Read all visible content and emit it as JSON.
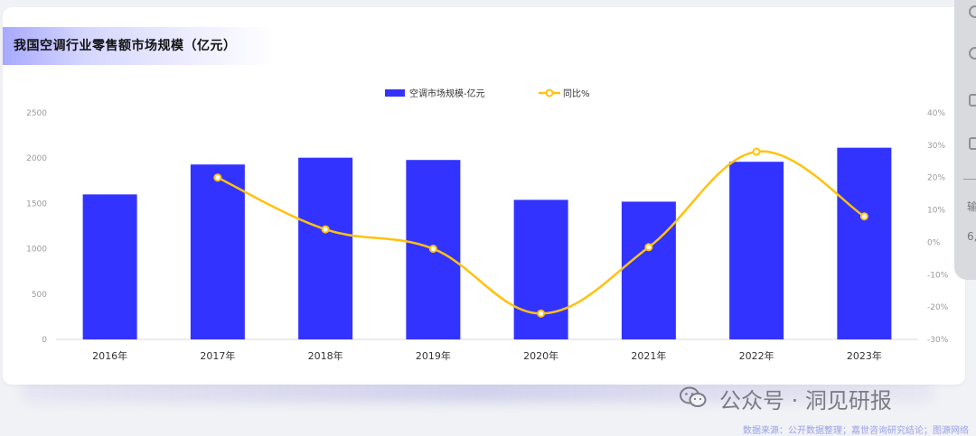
{
  "chart_title": "我国空调行业零售额市场规模（亿元）",
  "watermark": {
    "text": "公众号 · 洞见研报",
    "icon": "wechat-icon"
  },
  "source_note": "数据来源：公开数据整理；嘉世咨询研究结论；图源网络",
  "side_panel": {
    "text_1": "输",
    "text_2": "6,"
  },
  "colors": {
    "bar": "#3333ff",
    "line": "#ffc20e",
    "axis_text": "#999999"
  },
  "chart_data": {
    "type": "bar",
    "title": "我国空调行业零售额市场规模（亿元）",
    "categories": [
      "2016年",
      "2017年",
      "2018年",
      "2019年",
      "2020年",
      "2021年",
      "2022年",
      "2023年"
    ],
    "series": [
      {
        "name": "空调市场规模-亿元",
        "type": "bar",
        "axis": "left",
        "values": [
          1600,
          1930,
          2005,
          1980,
          1540,
          1520,
          1960,
          2115
        ]
      },
      {
        "name": "同比%",
        "type": "line",
        "axis": "right",
        "values": [
          null,
          20,
          4,
          -2,
          -22,
          -1.5,
          28,
          8
        ]
      }
    ],
    "y_left": {
      "min": 0,
      "max": 2500,
      "ticks": [
        "0",
        "500",
        "1000",
        "1500",
        "2000",
        "2500"
      ]
    },
    "y_right": {
      "min": -30,
      "max": 40,
      "ticks": [
        "-30%",
        "-20%",
        "-10%",
        "0%",
        "10%",
        "20%",
        "30%",
        "40%"
      ]
    },
    "legend": "top-center",
    "grid": false
  }
}
